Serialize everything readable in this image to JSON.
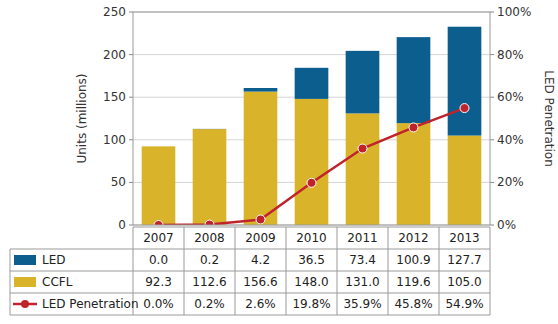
{
  "chart_data": {
    "type": "bar",
    "stacked": true,
    "grid": true,
    "y_label": "Units (millions)",
    "y2_label": "LED Penetration",
    "categories": [
      "2007",
      "2008",
      "2009",
      "2010",
      "2011",
      "2012",
      "2013"
    ],
    "ylim": [
      0,
      250
    ],
    "yticks": [
      0,
      50,
      100,
      150,
      200,
      250
    ],
    "y2lim": [
      0,
      100
    ],
    "y2ticks": [
      {
        "value": 0,
        "label": "0%"
      },
      {
        "value": 20,
        "label": "20%"
      },
      {
        "value": 40,
        "label": "40%"
      },
      {
        "value": 60,
        "label": "60%"
      },
      {
        "value": 80,
        "label": "80%"
      },
      {
        "value": 100,
        "label": "100%"
      }
    ],
    "series": [
      {
        "name": "LED",
        "type": "bar",
        "color": "#0b5e8e",
        "values": [
          0.0,
          0.2,
          4.2,
          36.5,
          73.4,
          100.9,
          127.7
        ],
        "value_labels": [
          "0.0",
          "0.2",
          "4.2",
          "36.5",
          "73.4",
          "100.9",
          "127.7"
        ]
      },
      {
        "name": "CCFL",
        "type": "bar",
        "color": "#d9b32a",
        "values": [
          92.3,
          112.6,
          156.6,
          148.0,
          131.0,
          119.6,
          105.0
        ],
        "value_labels": [
          "92.3",
          "112.6",
          "156.6",
          "148.0",
          "131.0",
          "119.6",
          "105.0"
        ]
      },
      {
        "name": "LED Penetration",
        "type": "line",
        "axis": "y2",
        "color": "#c0232c",
        "marker": "circle",
        "line_style": "solid",
        "values": [
          0.0,
          0.2,
          2.6,
          19.8,
          35.9,
          45.8,
          54.9
        ],
        "value_labels": [
          "0.0%",
          "0.2%",
          "2.6%",
          "19.8%",
          "35.9%",
          "45.8%",
          "54.9%"
        ]
      }
    ]
  }
}
